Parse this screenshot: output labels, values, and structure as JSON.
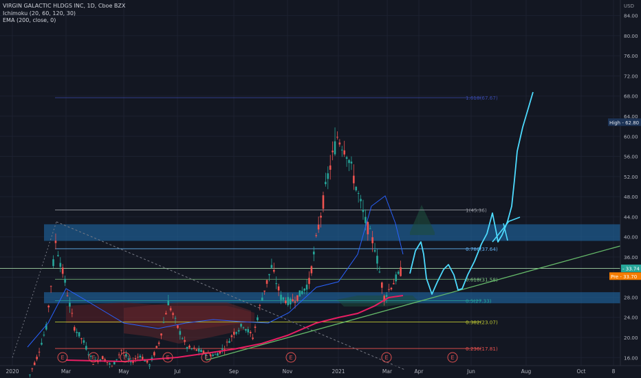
{
  "chart_data": {
    "type": "candlestick",
    "title": "VIRGIN GALACTIC HLDGS INC, 1D, Cboe BZX",
    "indicators": [
      "Ichimoku (20, 60, 120, 30)",
      "EMA (200, close, 0)"
    ],
    "currency": "USD",
    "y_ticks": [
      16,
      20,
      24,
      28,
      32,
      36,
      40,
      44,
      48,
      52,
      56,
      60,
      64,
      68,
      72,
      76,
      80,
      84
    ],
    "x_ticks": [
      "2020",
      "Mar",
      "May",
      "Jul",
      "Sep",
      "Nov",
      "2021",
      "Mar",
      "Apr",
      "Jun",
      "Aug",
      "Oct",
      "8"
    ],
    "y_min": 14.4,
    "y_max": 86,
    "price_path": [
      [
        "2020",
        11.5
      ],
      [
        "Feb",
        16
      ],
      [
        "Feb",
        22
      ],
      [
        "Feb",
        39
      ],
      [
        "Mar",
        31
      ],
      [
        "Mar",
        22
      ],
      [
        "Mar",
        19
      ],
      [
        "Mar",
        15
      ],
      [
        "Apr",
        16
      ],
      [
        "Apr",
        14.2
      ],
      [
        "May",
        17.5
      ],
      [
        "May",
        15
      ],
      [
        "Jun",
        16.5
      ],
      [
        "Jun",
        14.5
      ],
      [
        "Jul",
        19
      ],
      [
        "Jul",
        27
      ],
      [
        "Jul",
        22
      ],
      [
        "Aug",
        18
      ],
      [
        "Aug",
        17.5
      ],
      [
        "Sep",
        16.8
      ],
      [
        "Sep",
        16.5
      ],
      [
        "Oct",
        18
      ],
      [
        "Oct",
        21
      ],
      [
        "Oct",
        22.5
      ],
      [
        "Nov",
        20
      ],
      [
        "Nov",
        28
      ],
      [
        "Nov",
        34
      ],
      [
        "Dec",
        28
      ],
      [
        "Dec",
        27
      ],
      [
        "Dec",
        28.5
      ],
      [
        "2021",
        31
      ],
      [
        "Jan",
        42
      ],
      [
        "Jan",
        52
      ],
      [
        "Feb",
        60
      ],
      [
        "Feb",
        57
      ],
      [
        "Feb",
        50
      ],
      [
        "Feb",
        43
      ],
      [
        "Mar",
        38
      ],
      [
        "Mar",
        28
      ],
      [
        "Mar",
        31
      ],
      [
        "Mar",
        33.7
      ]
    ],
    "ema_path": [
      [
        "Mar",
        15.2
      ],
      [
        "May",
        14.8
      ],
      [
        "Jul",
        15.6
      ],
      [
        "Sep",
        16.8
      ],
      [
        "Nov",
        19.5
      ],
      [
        "2021",
        23
      ],
      [
        "Feb",
        26
      ],
      [
        "Mar",
        27.8
      ]
    ],
    "fib_levels": [
      {
        "label": "1.618(67.67)",
        "value": 67.67,
        "color": "#3949ab"
      },
      {
        "label": "1(45.36)",
        "value": 45.36,
        "color": "#9598a1"
      },
      {
        "label": "0.786(37.64)",
        "value": 37.64,
        "color": "#64b5f6"
      },
      {
        "label": "0.618(31.58)",
        "value": 31.58,
        "color": "#81c784"
      },
      {
        "label": "0.5(27.33)",
        "value": 27.33,
        "color": "#26a69a"
      },
      {
        "label": "0.382(23.07)",
        "value": 23.07,
        "color": "#c0ca33"
      },
      {
        "label": "0.236(17.81)",
        "value": 17.81,
        "color": "#ef5350"
      }
    ],
    "zones": [
      {
        "top": 42.5,
        "bottom": 39.2
      },
      {
        "top": 29.0,
        "bottom": 26.8
      }
    ],
    "horizontal_line": {
      "value": 33.74
    },
    "trendline": [
      [
        "Aug",
        15.5
      ],
      [
        "right",
        38.2
      ]
    ],
    "falling_line": [
      [
        "Feb",
        43
      ],
      [
        "Mar",
        13.5
      ]
    ],
    "dotted_rise": [
      [
        "2020",
        16
      ],
      [
        "Feb",
        43
      ]
    ],
    "drawn_projection": [
      [
        "Mar",
        31.5
      ],
      [
        "Apr",
        37.5
      ],
      [
        "Apr",
        28.5
      ],
      [
        "May",
        34.0
      ],
      [
        "May",
        29.5
      ],
      [
        "Jun",
        35.5
      ],
      [
        "Jun",
        44.8
      ],
      [
        "Jul",
        39.5
      ],
      [
        "Jul",
        43.5
      ],
      [
        "Jul",
        68.5
      ]
    ],
    "labels": {
      "high": {
        "text": "High",
        "value": "62.80"
      },
      "last": {
        "value": "33.74"
      },
      "pre": {
        "text": "Pre",
        "value": "33.70"
      }
    },
    "earnings_markers": [
      "E",
      "E",
      "E",
      "E",
      "E",
      "E",
      "E"
    ]
  }
}
